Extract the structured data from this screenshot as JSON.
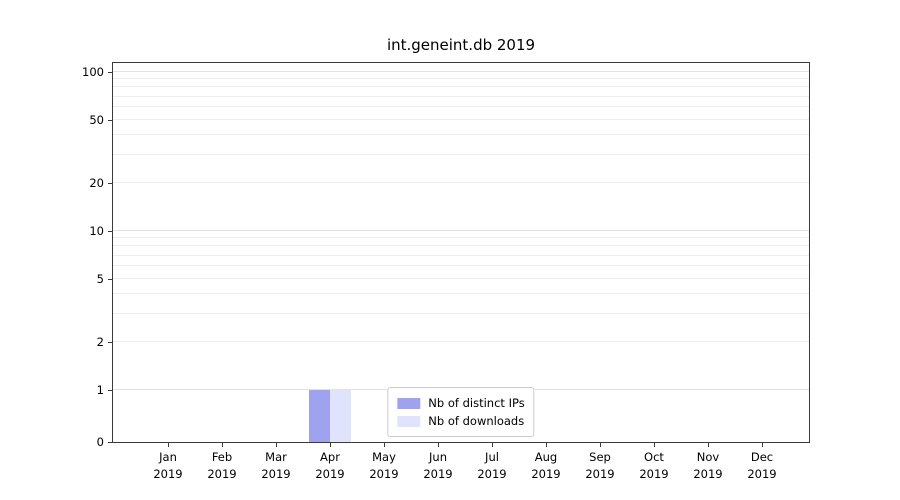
{
  "chart_data": {
    "type": "bar",
    "title": "int.geneint.db 2019",
    "x_months": [
      "Jan",
      "Feb",
      "Mar",
      "Apr",
      "May",
      "Jun",
      "Jul",
      "Aug",
      "Sep",
      "Oct",
      "Nov",
      "Dec"
    ],
    "x_year": "2019",
    "series": [
      {
        "name": "Nb of distinct IPs",
        "color": "#9fa3ef",
        "values": [
          0,
          0,
          0,
          1,
          0,
          0,
          0,
          0,
          0,
          0,
          0,
          0
        ]
      },
      {
        "name": "Nb of downloads",
        "color": "#e0e3fc",
        "values": [
          0,
          0,
          0,
          1,
          0,
          0,
          0,
          0,
          0,
          0,
          0,
          0
        ]
      }
    ],
    "yscale": "symlog",
    "yticks": [
      100,
      50,
      20,
      10,
      5,
      2,
      1,
      0
    ],
    "ylim": [
      0,
      115
    ],
    "grid": "horizontal-log-minor",
    "legend_position": "lower-center-inside"
  }
}
